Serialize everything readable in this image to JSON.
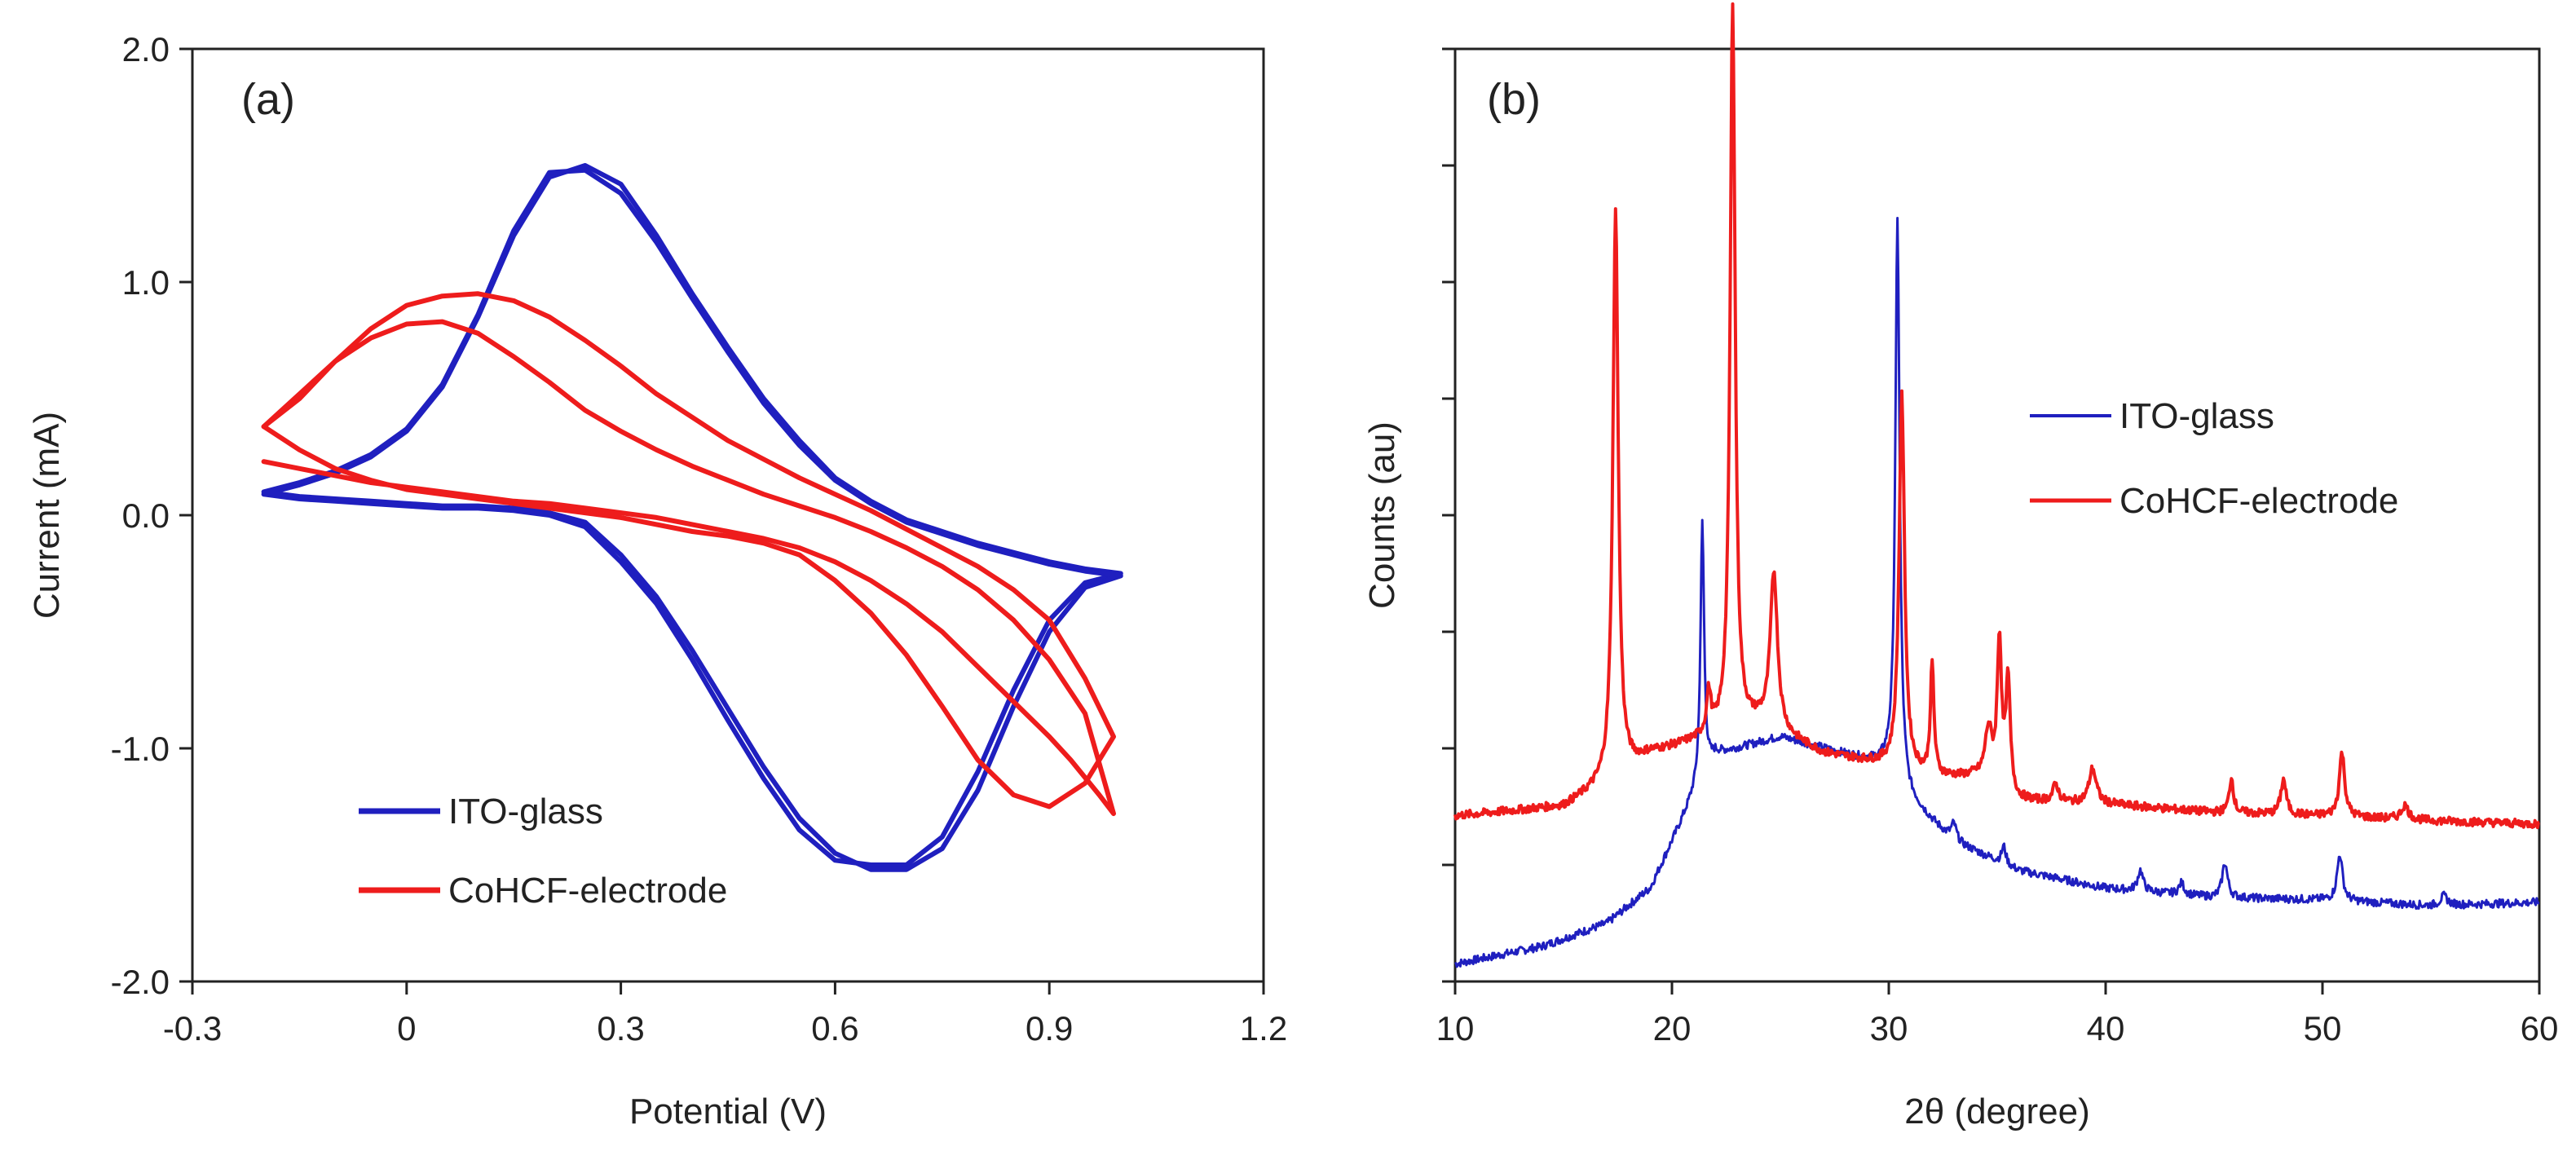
{
  "figure": {
    "panels": [
      {
        "panel_label": "(a)",
        "chart_data": {
          "type": "line",
          "title": "",
          "xlabel": "Potential  (V)",
          "ylabel": "Current  (mA)",
          "xlim": [
            -0.3,
            1.2
          ],
          "ylim": [
            -2.0,
            2.0
          ],
          "xticks": [
            -0.3,
            0,
            0.3,
            0.6,
            0.9,
            1.2
          ],
          "xtick_labels": [
            "-0.3",
            "0",
            "0.3",
            "0.6",
            "0.9",
            "1.2"
          ],
          "yticks": [
            -2.0,
            -1.0,
            0.0,
            1.0,
            2.0
          ],
          "ytick_labels": [
            "-2.0",
            "-1.0",
            "0.0",
            "1.0",
            "2.0"
          ],
          "grid": false,
          "legend_position": "bottom-left",
          "series": [
            {
              "name": "ITO-glass",
              "color": "#1f1fbf",
              "cycles": [
                {
                  "x": [
                    -0.2,
                    -0.15,
                    -0.1,
                    -0.05,
                    0.0,
                    0.05,
                    0.1,
                    0.15,
                    0.2,
                    0.25,
                    0.3,
                    0.35,
                    0.4,
                    0.45,
                    0.5,
                    0.55,
                    0.6,
                    0.65,
                    0.7,
                    0.75,
                    0.8,
                    0.85,
                    0.9,
                    0.95,
                    1.0,
                    0.95,
                    0.9,
                    0.85,
                    0.8,
                    0.75,
                    0.7,
                    0.65,
                    0.6,
                    0.55,
                    0.5,
                    0.45,
                    0.4,
                    0.35,
                    0.3,
                    0.25,
                    0.2,
                    0.15,
                    0.1,
                    0.05,
                    0.0,
                    -0.05,
                    -0.1,
                    -0.15,
                    -0.2
                  ],
                  "y": [
                    0.09,
                    0.13,
                    0.18,
                    0.25,
                    0.36,
                    0.55,
                    0.85,
                    1.2,
                    1.45,
                    1.5,
                    1.42,
                    1.2,
                    0.95,
                    0.72,
                    0.5,
                    0.32,
                    0.16,
                    0.06,
                    -0.02,
                    -0.07,
                    -0.12,
                    -0.16,
                    -0.2,
                    -0.23,
                    -0.25,
                    -0.29,
                    -0.45,
                    -0.75,
                    -1.1,
                    -1.38,
                    -1.5,
                    -1.5,
                    -1.48,
                    -1.35,
                    -1.13,
                    -0.88,
                    -0.62,
                    -0.38,
                    -0.2,
                    -0.05,
                    0.0,
                    0.02,
                    0.03,
                    0.03,
                    0.04,
                    0.05,
                    0.06,
                    0.07,
                    0.09
                  ]
                },
                {
                  "x": [
                    -0.2,
                    -0.15,
                    -0.1,
                    -0.05,
                    0.0,
                    0.05,
                    0.1,
                    0.15,
                    0.2,
                    0.25,
                    0.3,
                    0.35,
                    0.4,
                    0.45,
                    0.5,
                    0.55,
                    0.6,
                    0.65,
                    0.7,
                    0.75,
                    0.8,
                    0.85,
                    0.9,
                    0.95,
                    1.0,
                    0.95,
                    0.9,
                    0.85,
                    0.8,
                    0.75,
                    0.7,
                    0.65,
                    0.6,
                    0.55,
                    0.5,
                    0.45,
                    0.4,
                    0.35,
                    0.3,
                    0.25,
                    0.2,
                    0.15,
                    0.1,
                    0.05,
                    0.0,
                    -0.05,
                    -0.1,
                    -0.15,
                    -0.2
                  ],
                  "y": [
                    0.1,
                    0.14,
                    0.19,
                    0.26,
                    0.37,
                    0.56,
                    0.86,
                    1.22,
                    1.47,
                    1.48,
                    1.38,
                    1.17,
                    0.93,
                    0.7,
                    0.48,
                    0.3,
                    0.15,
                    0.05,
                    -0.03,
                    -0.08,
                    -0.13,
                    -0.17,
                    -0.21,
                    -0.24,
                    -0.26,
                    -0.31,
                    -0.5,
                    -0.82,
                    -1.18,
                    -1.43,
                    -1.52,
                    -1.52,
                    -1.45,
                    -1.3,
                    -1.08,
                    -0.83,
                    -0.58,
                    -0.35,
                    -0.17,
                    -0.03,
                    0.01,
                    0.03,
                    0.04,
                    0.04,
                    0.05,
                    0.06,
                    0.07,
                    0.08,
                    0.1
                  ]
                }
              ]
            },
            {
              "name": "CoHCF-electrode",
              "color": "#ee1c1c",
              "cycles": [
                {
                  "x": [
                    -0.2,
                    -0.15,
                    -0.1,
                    -0.05,
                    0.0,
                    0.05,
                    0.1,
                    0.15,
                    0.2,
                    0.25,
                    0.3,
                    0.35,
                    0.4,
                    0.45,
                    0.5,
                    0.55,
                    0.6,
                    0.65,
                    0.7,
                    0.75,
                    0.8,
                    0.85,
                    0.9,
                    0.95,
                    0.99,
                    0.95,
                    0.9,
                    0.85,
                    0.8,
                    0.75,
                    0.7,
                    0.65,
                    0.6,
                    0.55,
                    0.5,
                    0.45,
                    0.4,
                    0.35,
                    0.3,
                    0.25,
                    0.2,
                    0.15,
                    0.1,
                    0.05,
                    0.0,
                    -0.05,
                    -0.1,
                    -0.15,
                    -0.2
                  ],
                  "y": [
                    0.38,
                    0.5,
                    0.66,
                    0.8,
                    0.9,
                    0.94,
                    0.95,
                    0.92,
                    0.85,
                    0.75,
                    0.64,
                    0.52,
                    0.42,
                    0.32,
                    0.24,
                    0.16,
                    0.09,
                    0.02,
                    -0.06,
                    -0.14,
                    -0.22,
                    -0.32,
                    -0.45,
                    -0.7,
                    -0.95,
                    -1.15,
                    -1.25,
                    -1.2,
                    -1.05,
                    -0.82,
                    -0.6,
                    -0.42,
                    -0.28,
                    -0.17,
                    -0.12,
                    -0.09,
                    -0.07,
                    -0.04,
                    -0.01,
                    0.01,
                    0.03,
                    0.05,
                    0.07,
                    0.09,
                    0.11,
                    0.15,
                    0.2,
                    0.28,
                    0.38
                  ]
                },
                {
                  "x": [
                    -0.2,
                    -0.15,
                    -0.1,
                    -0.05,
                    0.0,
                    0.05,
                    0.1,
                    0.15,
                    0.2,
                    0.25,
                    0.3,
                    0.35,
                    0.4,
                    0.45,
                    0.5,
                    0.55,
                    0.6,
                    0.65,
                    0.7,
                    0.75,
                    0.8,
                    0.85,
                    0.9,
                    0.95,
                    0.99,
                    0.97,
                    0.93,
                    0.9,
                    0.85,
                    0.8,
                    0.75,
                    0.7,
                    0.65,
                    0.6,
                    0.55,
                    0.5,
                    0.45,
                    0.4,
                    0.35,
                    0.3,
                    0.25,
                    0.2,
                    0.15,
                    0.1,
                    0.05,
                    0.0,
                    -0.05,
                    -0.1,
                    -0.15,
                    -0.2
                  ],
                  "y": [
                    0.38,
                    0.52,
                    0.66,
                    0.76,
                    0.82,
                    0.83,
                    0.78,
                    0.68,
                    0.57,
                    0.45,
                    0.36,
                    0.28,
                    0.21,
                    0.15,
                    0.09,
                    0.04,
                    -0.01,
                    -0.07,
                    -0.14,
                    -0.22,
                    -0.32,
                    -0.45,
                    -0.62,
                    -0.85,
                    -1.28,
                    -1.2,
                    -1.05,
                    -0.95,
                    -0.8,
                    -0.65,
                    -0.5,
                    -0.38,
                    -0.28,
                    -0.2,
                    -0.14,
                    -0.1,
                    -0.07,
                    -0.04,
                    -0.01,
                    0.01,
                    0.03,
                    0.05,
                    0.06,
                    0.08,
                    0.1,
                    0.12,
                    0.14,
                    0.17,
                    0.2,
                    0.23
                  ]
                }
              ]
            }
          ]
        }
      },
      {
        "panel_label": "(b)",
        "chart_data": {
          "type": "line",
          "title": "",
          "xlabel": "2θ (degree)",
          "ylabel": "Counts (au)",
          "xlim": [
            10,
            60
          ],
          "ylim": [
            0,
            8
          ],
          "xticks": [
            10,
            20,
            30,
            40,
            50,
            60
          ],
          "xtick_labels": [
            "10",
            "20",
            "30",
            "40",
            "50",
            "60"
          ],
          "yticks": [
            0,
            1,
            2,
            3,
            4,
            5,
            6,
            7,
            8
          ],
          "ytick_labels": [],
          "grid": false,
          "legend_position": "middle-right",
          "series": [
            {
              "name": "ITO-glass",
              "color": "#1f1fbf",
              "baseline": [
                [
                  10,
                  0.15
                ],
                [
                  14,
                  0.3
                ],
                [
                  17,
                  0.5
                ],
                [
                  19,
                  0.8
                ],
                [
                  20,
                  1.2
                ],
                [
                  21,
                  1.6
                ],
                [
                  22,
                  1.95
                ],
                [
                  25,
                  2.1
                ],
                [
                  28,
                  1.95
                ],
                [
                  30,
                  1.85
                ],
                [
                  31,
                  1.55
                ],
                [
                  33,
                  1.2
                ],
                [
                  36,
                  0.95
                ],
                [
                  40,
                  0.8
                ],
                [
                  45,
                  0.72
                ],
                [
                  50,
                  0.7
                ],
                [
                  55,
                  0.65
                ],
                [
                  60,
                  0.68
                ]
              ],
              "peaks": [
                [
                  21.4,
                  2.2,
                  0.1
                ],
                [
                  30.4,
                  4.8,
                  0.12
                ],
                [
                  33.0,
                  0.15,
                  0.15
                ],
                [
                  35.3,
                  0.15,
                  0.12
                ],
                [
                  41.6,
                  0.18,
                  0.15
                ],
                [
                  43.5,
                  0.1,
                  0.15
                ],
                [
                  45.5,
                  0.3,
                  0.15
                ],
                [
                  50.8,
                  0.4,
                  0.15
                ],
                [
                  55.6,
                  0.08,
                  0.2
                ]
              ]
            },
            {
              "name": "CoHCF-electrode",
              "color": "#ee1c1c",
              "baseline": [
                [
                  10,
                  1.42
                ],
                [
                  15,
                  1.5
                ],
                [
                  17,
                  1.7
                ],
                [
                  19,
                  1.95
                ],
                [
                  21,
                  2.05
                ],
                [
                  22,
                  2.1
                ],
                [
                  24,
                  2.2
                ],
                [
                  27,
                  1.95
                ],
                [
                  30,
                  1.85
                ],
                [
                  32,
                  1.75
                ],
                [
                  34,
                  1.75
                ],
                [
                  36,
                  1.55
                ],
                [
                  40,
                  1.52
                ],
                [
                  45,
                  1.45
                ],
                [
                  50,
                  1.42
                ],
                [
                  55,
                  1.38
                ],
                [
                  60,
                  1.35
                ]
              ],
              "peaks": [
                [
                  17.4,
                  4.85,
                  0.15
                ],
                [
                  21.7,
                  0.35,
                  0.12
                ],
                [
                  22.8,
                  6.25,
                  0.14
                ],
                [
                  24.7,
                  1.35,
                  0.2
                ],
                [
                  30.6,
                  3.2,
                  0.15
                ],
                [
                  32.0,
                  0.95,
                  0.1
                ],
                [
                  34.6,
                  0.45,
                  0.2
                ],
                [
                  35.1,
                  1.25,
                  0.12
                ],
                [
                  35.5,
                  0.95,
                  0.12
                ],
                [
                  37.7,
                  0.15,
                  0.15
                ],
                [
                  39.4,
                  0.3,
                  0.2
                ],
                [
                  45.8,
                  0.3,
                  0.12
                ],
                [
                  48.2,
                  0.3,
                  0.15
                ],
                [
                  50.9,
                  0.55,
                  0.15
                ],
                [
                  53.8,
                  0.12,
                  0.2
                ]
              ]
            }
          ]
        }
      }
    ]
  }
}
